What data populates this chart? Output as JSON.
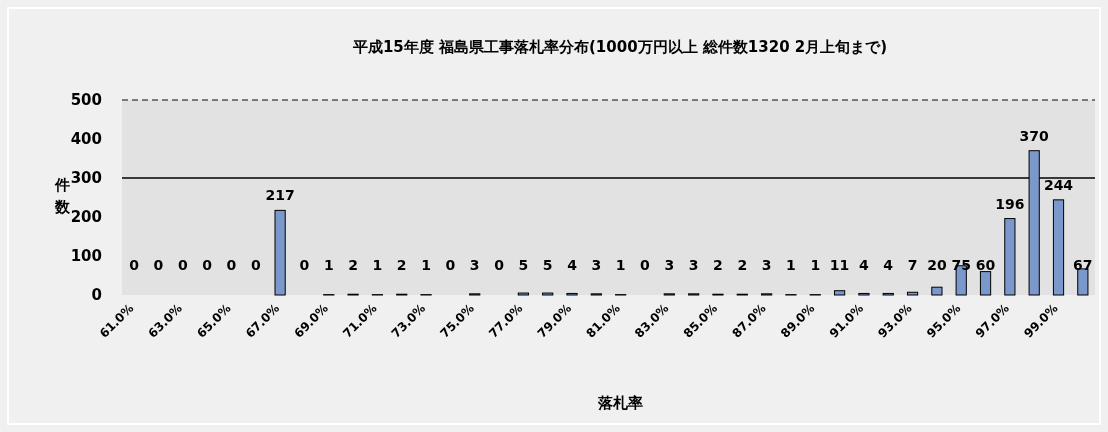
{
  "chart_data": {
    "type": "bar",
    "title": "平成15年度 福島県工事落札率分布(1000万円以上 総件数1320 2月上旬まで)",
    "xlabel": "落札率",
    "ylabel": "件数",
    "categories": [
      "61.0%",
      null,
      "63.0%",
      null,
      "65.0%",
      null,
      "67.0%",
      null,
      "69.0%",
      null,
      "71.0%",
      null,
      "73.0%",
      null,
      "75.0%",
      null,
      "77.0%",
      null,
      "79.0%",
      null,
      "81.0%",
      null,
      "83.0%",
      null,
      "85.0%",
      null,
      "87.0%",
      null,
      "89.0%",
      null,
      "91.0%",
      null,
      "93.0%",
      null,
      "95.0%",
      null,
      "97.0%",
      null,
      "99.0%",
      null
    ],
    "values": [
      0,
      0,
      0,
      0,
      0,
      0,
      217,
      0,
      1,
      2,
      1,
      2,
      1,
      0,
      3,
      0,
      5,
      5,
      4,
      3,
      1,
      0,
      3,
      3,
      2,
      2,
      3,
      1,
      1,
      11,
      4,
      4,
      7,
      20,
      75,
      60,
      196,
      370,
      244,
      67
    ],
    "color": "#7b98cc",
    "ylim": [
      0,
      500
    ],
    "yticks": [
      0,
      100,
      200,
      300,
      400,
      500
    ],
    "data_labels": true,
    "grid": false,
    "ref_lines": [
      {
        "axis": "y",
        "value": 300,
        "color": "#000000"
      }
    ]
  }
}
